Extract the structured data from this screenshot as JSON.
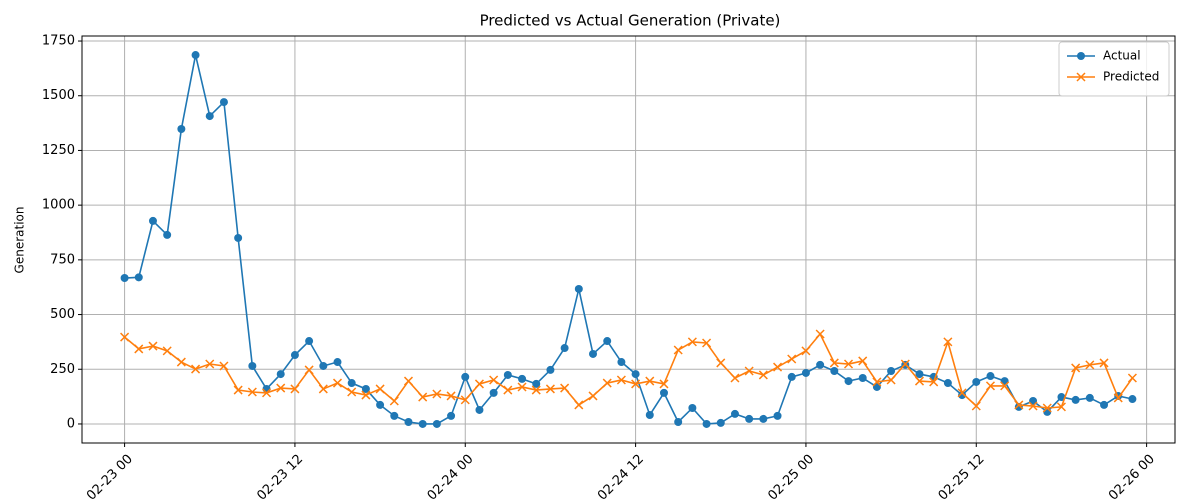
{
  "chart_data": {
    "type": "line",
    "title": "Predicted vs Actual Generation (Private)",
    "y_label": "Generation",
    "x": [
      "02-23 00",
      "02-23 01",
      "02-23 02",
      "02-23 03",
      "02-23 04",
      "02-23 05",
      "02-23 06",
      "02-23 07",
      "02-23 08",
      "02-23 09",
      "02-23 10",
      "02-23 11",
      "02-23 12",
      "02-23 13",
      "02-23 14",
      "02-23 15",
      "02-23 16",
      "02-23 17",
      "02-23 18",
      "02-23 19",
      "02-23 20",
      "02-23 21",
      "02-23 22",
      "02-23 23",
      "02-24 00",
      "02-24 01",
      "02-24 02",
      "02-24 03",
      "02-24 04",
      "02-24 05",
      "02-24 06",
      "02-24 07",
      "02-24 08",
      "02-24 09",
      "02-24 10",
      "02-24 11",
      "02-24 12",
      "02-24 13",
      "02-24 14",
      "02-24 15",
      "02-24 16",
      "02-24 17",
      "02-24 18",
      "02-24 19",
      "02-24 20",
      "02-24 21",
      "02-24 22",
      "02-24 23",
      "02-25 00",
      "02-25 01",
      "02-25 02",
      "02-25 03",
      "02-25 04",
      "02-25 05",
      "02-25 06",
      "02-25 07",
      "02-25 08",
      "02-25 09",
      "02-25 10",
      "02-25 11",
      "02-25 12",
      "02-25 13",
      "02-25 14",
      "02-25 15",
      "02-25 16",
      "02-25 17",
      "02-25 18",
      "02-25 19",
      "02-25 20",
      "02-25 21",
      "02-25 22",
      "02-25 23"
    ],
    "series": [
      {
        "name": "Actual",
        "color": "#1f77b4",
        "marker": "circle",
        "values": [
          667,
          670,
          928,
          864,
          1348,
          1686,
          1407,
          1471,
          850,
          265,
          160,
          228,
          315,
          379,
          265,
          283,
          187,
          160,
          87,
          37,
          9,
          0,
          0,
          37,
          215,
          64,
          142,
          224,
          206,
          183,
          247,
          347,
          617,
          320,
          379,
          283,
          228,
          41,
          142,
          9,
          73,
          0,
          5,
          46,
          23,
          23,
          37,
          215,
          233,
          270,
          242,
          196,
          210,
          169,
          242,
          270,
          228,
          215,
          187,
          132,
          192,
          219,
          196,
          78,
          105,
          55,
          123,
          110,
          119,
          87,
          128,
          114
        ]
      },
      {
        "name": "Predicted",
        "color": "#ff7f0e",
        "marker": "x",
        "values": [
          397,
          343,
          356,
          334,
          283,
          251,
          274,
          265,
          155,
          146,
          142,
          164,
          160,
          247,
          160,
          187,
          146,
          132,
          160,
          105,
          196,
          123,
          137,
          128,
          110,
          183,
          201,
          155,
          169,
          155,
          160,
          164,
          87,
          128,
          187,
          201,
          183,
          196,
          183,
          338,
          375,
          370,
          279,
          210,
          242,
          224,
          260,
          297,
          334,
          411,
          279,
          274,
          288,
          192,
          201,
          274,
          196,
          192,
          375,
          142,
          82,
          174,
          174,
          87,
          82,
          73,
          78,
          256,
          270,
          279,
          119,
          210
        ]
      }
    ],
    "xlim": [
      "02-22 21",
      "02-26 02"
    ],
    "xticks": [
      "02-23 00",
      "02-23 12",
      "02-24 00",
      "02-24 12",
      "02-25 00",
      "02-25 12",
      "02-26 00"
    ],
    "ylim": [
      -87,
      1773
    ],
    "yticks": [
      0,
      250,
      500,
      750,
      1000,
      1250,
      1500,
      1750
    ],
    "grid": true,
    "legend": "upper-right"
  }
}
